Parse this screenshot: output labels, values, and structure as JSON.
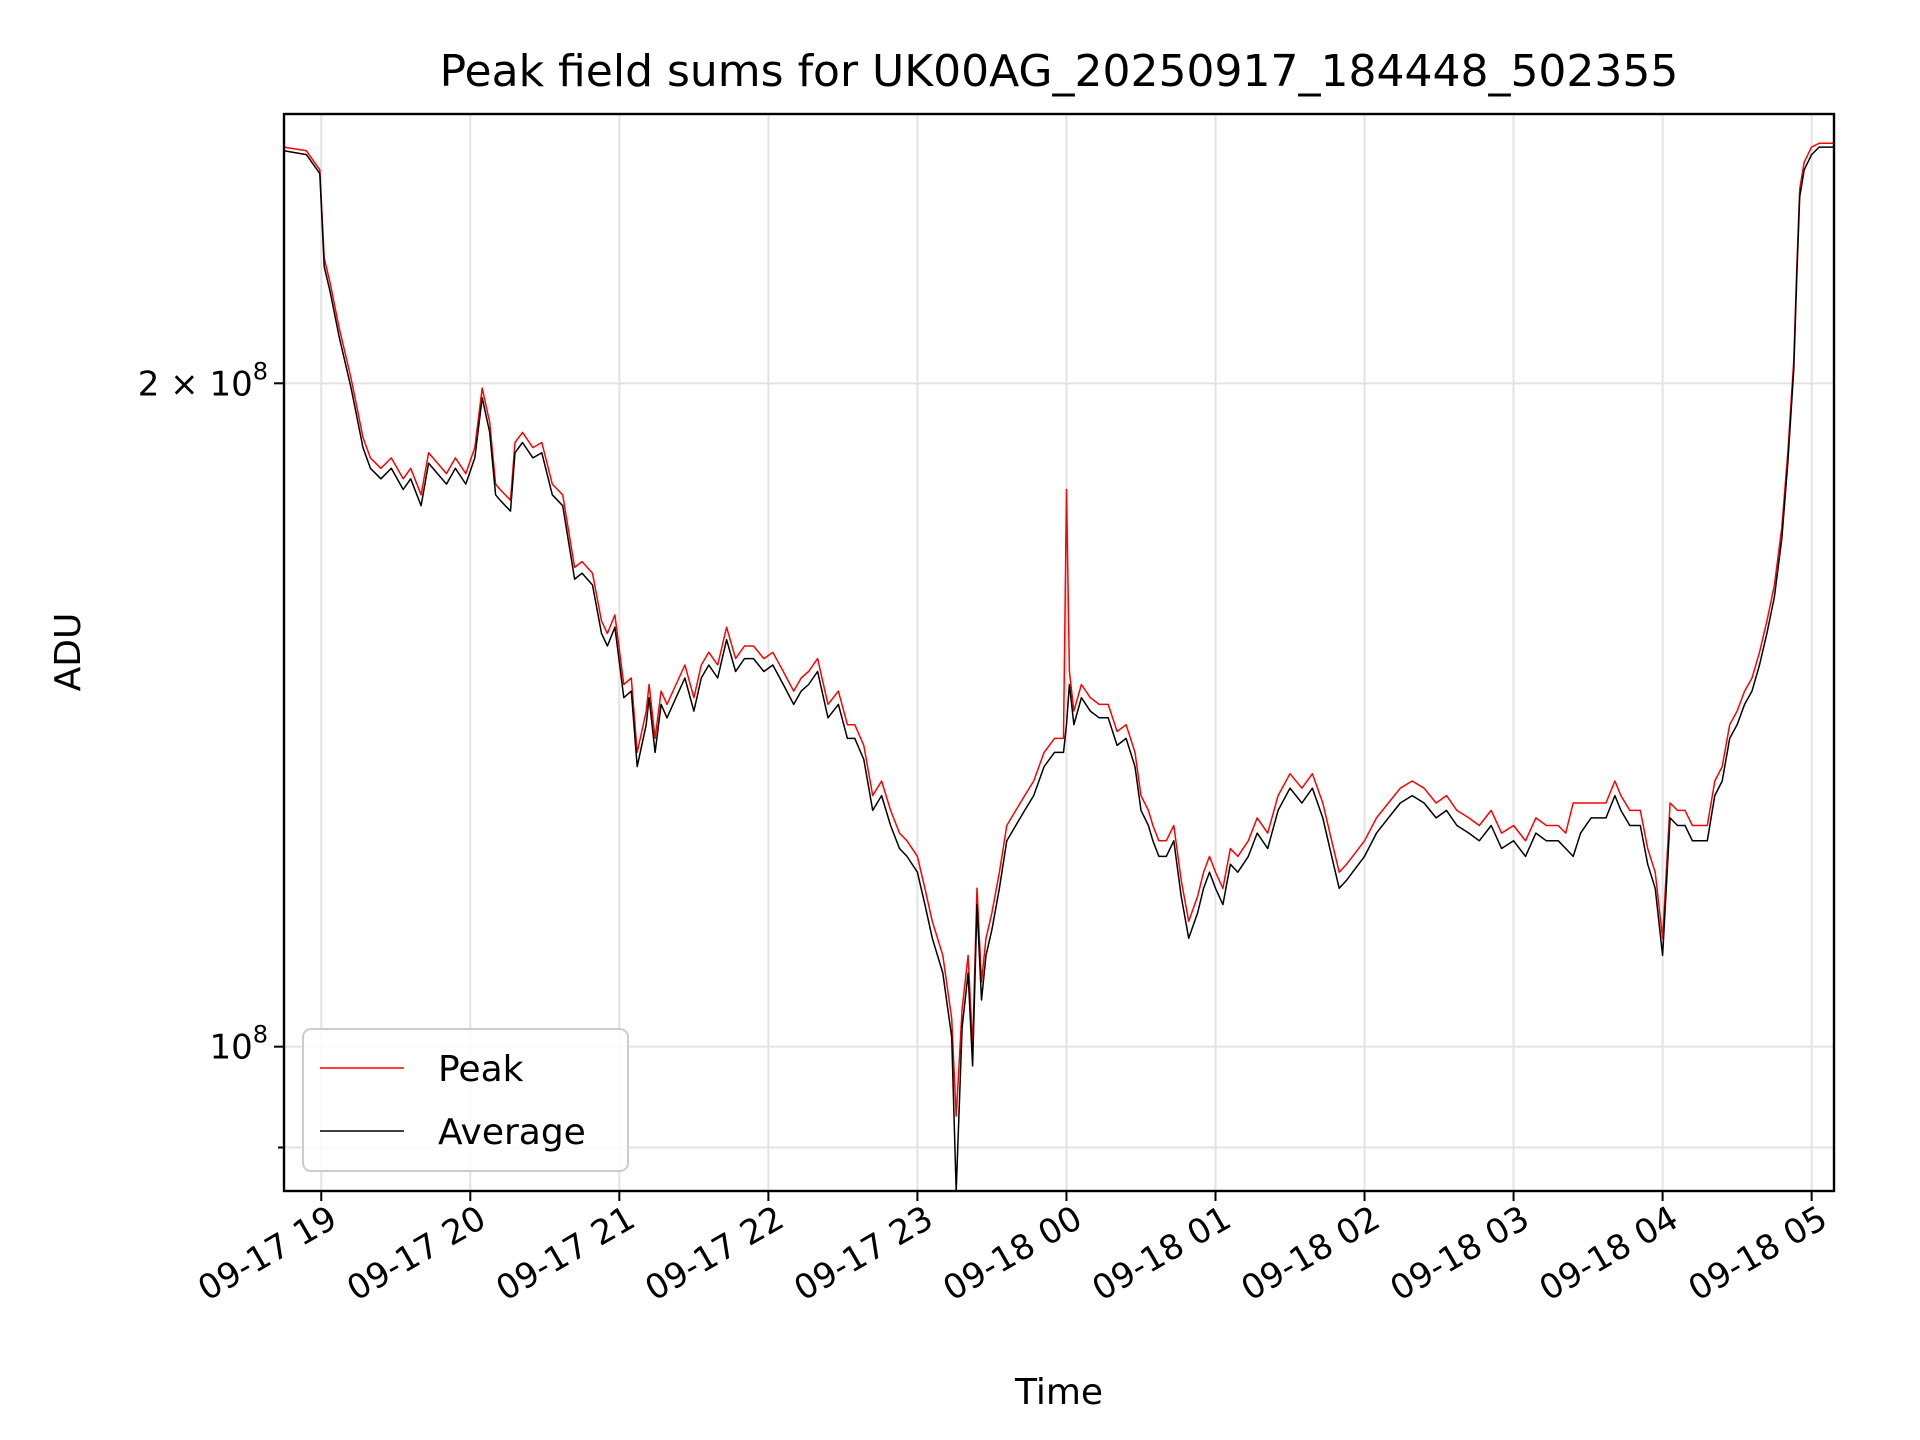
{
  "chart_data": {
    "type": "line",
    "title": "Peak field sums for UK00AG_20250917_184448_502355",
    "xlabel": "Time",
    "ylabel": "ADU",
    "yscale": "log",
    "ylim": [
      86000000,
      265000000
    ],
    "xlim": [
      18.75,
      29.15
    ],
    "grid": true,
    "legend_position": "lower-left",
    "x_ticks": [
      {
        "value": 19,
        "label": "09-17 19"
      },
      {
        "value": 20,
        "label": "09-17 20"
      },
      {
        "value": 21,
        "label": "09-17 21"
      },
      {
        "value": 22,
        "label": "09-17 22"
      },
      {
        "value": 23,
        "label": "09-17 23"
      },
      {
        "value": 24,
        "label": "09-18 00"
      },
      {
        "value": 25,
        "label": "09-18 01"
      },
      {
        "value": 26,
        "label": "09-18 02"
      },
      {
        "value": 27,
        "label": "09-18 03"
      },
      {
        "value": 28,
        "label": "09-18 04"
      },
      {
        "value": 29,
        "label": "09-18 05"
      }
    ],
    "y_ticks": [
      {
        "value": 100000000,
        "base": "10",
        "exp": "8",
        "prefix": ""
      },
      {
        "value": 200000000,
        "base": "10",
        "exp": "8",
        "prefix": "2 × "
      }
    ],
    "y_minor_ticks": [
      90000000
    ],
    "series": [
      {
        "name": "Peak",
        "color": "#ff0000",
        "x": [
          18.75,
          18.9,
          18.99,
          19.02,
          19.06,
          19.12,
          19.2,
          19.28,
          19.33,
          19.4,
          19.47,
          19.55,
          19.6,
          19.67,
          19.72,
          19.78,
          19.84,
          19.9,
          19.97,
          20.03,
          20.08,
          20.13,
          20.17,
          20.2,
          20.27,
          20.3,
          20.35,
          20.42,
          20.48,
          20.55,
          20.62,
          20.7,
          20.75,
          20.82,
          20.88,
          20.92,
          20.97,
          21.03,
          21.08,
          21.12,
          21.18,
          21.2,
          21.24,
          21.28,
          21.32,
          21.38,
          21.44,
          21.5,
          21.55,
          21.6,
          21.66,
          21.72,
          21.78,
          21.84,
          21.9,
          21.97,
          22.03,
          22.1,
          22.17,
          22.22,
          22.27,
          22.33,
          22.4,
          22.47,
          22.53,
          22.58,
          22.64,
          22.7,
          22.76,
          22.82,
          22.88,
          22.93,
          23.0,
          23.05,
          23.1,
          23.17,
          23.23,
          23.26,
          23.3,
          23.34,
          23.37,
          23.4,
          23.43,
          23.46,
          23.5,
          23.55,
          23.6,
          23.66,
          23.72,
          23.78,
          23.85,
          23.92,
          23.98,
          24.0,
          24.02,
          24.05,
          24.1,
          24.16,
          24.22,
          24.28,
          24.34,
          24.4,
          24.46,
          24.5,
          24.55,
          24.58,
          24.62,
          24.67,
          24.72,
          24.77,
          24.82,
          24.88,
          24.92,
          24.96,
          25.0,
          25.05,
          25.1,
          25.15,
          25.22,
          25.28,
          25.35,
          25.42,
          25.5,
          25.58,
          25.65,
          25.72,
          25.78,
          25.83,
          25.88,
          25.92,
          26.0,
          26.08,
          26.16,
          26.24,
          26.32,
          26.4,
          26.48,
          26.55,
          26.62,
          26.7,
          26.77,
          26.85,
          26.92,
          27.0,
          27.08,
          27.15,
          27.22,
          27.3,
          27.35,
          27.4,
          27.45,
          27.52,
          27.58,
          27.62,
          27.68,
          27.72,
          27.78,
          27.85,
          27.9,
          27.95,
          28.0,
          28.05,
          28.1,
          28.15,
          28.2,
          28.25,
          28.3,
          28.35,
          28.4,
          28.45,
          28.5,
          28.55,
          28.6,
          28.65,
          28.7,
          28.75,
          28.8,
          28.84,
          28.88,
          28.9,
          28.92,
          28.95,
          29.0,
          29.05,
          29.15
        ],
        "values": [
          256000000,
          255000000,
          250000000,
          228000000,
          222000000,
          212000000,
          201000000,
          189000000,
          185000000,
          183000000,
          185000000,
          181000000,
          183000000,
          178000000,
          186000000,
          184000000,
          182000000,
          185000000,
          182000000,
          187000000,
          199000000,
          192000000,
          180000000,
          179000000,
          177000000,
          188000000,
          190000000,
          187000000,
          188000000,
          180000000,
          178000000,
          165000000,
          166000000,
          164000000,
          156000000,
          154000000,
          157000000,
          146000000,
          147000000,
          136000000,
          142000000,
          146000000,
          138000000,
          145000000,
          143000000,
          146000000,
          149000000,
          144000000,
          149000000,
          151000000,
          149000000,
          155000000,
          150000000,
          152000000,
          152000000,
          150000000,
          151000000,
          148000000,
          145000000,
          147000000,
          148000000,
          150000000,
          143000000,
          145000000,
          140000000,
          140000000,
          137000000,
          130000000,
          132000000,
          128000000,
          125000000,
          124000000,
          122000000,
          118000000,
          114000000,
          110000000,
          103000000,
          93000000,
          104000000,
          110000000,
          100000000,
          118000000,
          107000000,
          112000000,
          115000000,
          120000000,
          126000000,
          128000000,
          130000000,
          132000000,
          136000000,
          138000000,
          138000000,
          179000000,
          148000000,
          142000000,
          146000000,
          144000000,
          143000000,
          143000000,
          139000000,
          140000000,
          136000000,
          130000000,
          128000000,
          126000000,
          124000000,
          124000000,
          126000000,
          119000000,
          114000000,
          117000000,
          120000000,
          122000000,
          120000000,
          118000000,
          123000000,
          122000000,
          124000000,
          127000000,
          125000000,
          130000000,
          133000000,
          131000000,
          133000000,
          129000000,
          124000000,
          120000000,
          121000000,
          122000000,
          124000000,
          127000000,
          129000000,
          131000000,
          132000000,
          131000000,
          129000000,
          130000000,
          128000000,
          127000000,
          126000000,
          128000000,
          125000000,
          126000000,
          124000000,
          127000000,
          126000000,
          126000000,
          125000000,
          129000000,
          129000000,
          129000000,
          129000000,
          129000000,
          132000000,
          130000000,
          128000000,
          128000000,
          123000000,
          120000000,
          112000000,
          129000000,
          128000000,
          128000000,
          126000000,
          126000000,
          126000000,
          132000000,
          134000000,
          140000000,
          142000000,
          145000000,
          147000000,
          151000000,
          156000000,
          162000000,
          172000000,
          186000000,
          205000000,
          225000000,
          245000000,
          252000000,
          256000000,
          257000000,
          257000000
        ]
      },
      {
        "name": "Average",
        "color": "#000000",
        "x": [
          18.75,
          18.9,
          18.99,
          19.02,
          19.06,
          19.12,
          19.2,
          19.28,
          19.33,
          19.4,
          19.47,
          19.55,
          19.6,
          19.67,
          19.72,
          19.78,
          19.84,
          19.9,
          19.97,
          20.03,
          20.08,
          20.13,
          20.17,
          20.2,
          20.27,
          20.3,
          20.35,
          20.42,
          20.48,
          20.55,
          20.62,
          20.7,
          20.75,
          20.82,
          20.88,
          20.92,
          20.97,
          21.03,
          21.08,
          21.12,
          21.18,
          21.2,
          21.24,
          21.28,
          21.32,
          21.38,
          21.44,
          21.5,
          21.55,
          21.6,
          21.66,
          21.72,
          21.78,
          21.84,
          21.9,
          21.97,
          22.03,
          22.1,
          22.17,
          22.22,
          22.27,
          22.33,
          22.4,
          22.47,
          22.53,
          22.58,
          22.64,
          22.7,
          22.76,
          22.82,
          22.88,
          22.93,
          23.0,
          23.05,
          23.1,
          23.17,
          23.23,
          23.26,
          23.3,
          23.34,
          23.37,
          23.4,
          23.43,
          23.46,
          23.5,
          23.55,
          23.6,
          23.66,
          23.72,
          23.78,
          23.85,
          23.92,
          23.98,
          24.0,
          24.02,
          24.05,
          24.1,
          24.16,
          24.22,
          24.28,
          24.34,
          24.4,
          24.46,
          24.5,
          24.55,
          24.58,
          24.62,
          24.67,
          24.72,
          24.77,
          24.82,
          24.88,
          24.92,
          24.96,
          25.0,
          25.05,
          25.1,
          25.15,
          25.22,
          25.28,
          25.35,
          25.42,
          25.5,
          25.58,
          25.65,
          25.72,
          25.78,
          25.83,
          25.88,
          25.92,
          26.0,
          26.08,
          26.16,
          26.24,
          26.32,
          26.4,
          26.48,
          26.55,
          26.62,
          26.7,
          26.77,
          26.85,
          26.92,
          27.0,
          27.08,
          27.15,
          27.22,
          27.3,
          27.35,
          27.4,
          27.45,
          27.52,
          27.58,
          27.62,
          27.68,
          27.72,
          27.78,
          27.85,
          27.9,
          27.95,
          28.0,
          28.05,
          28.1,
          28.15,
          28.2,
          28.25,
          28.3,
          28.35,
          28.4,
          28.45,
          28.5,
          28.55,
          28.6,
          28.65,
          28.7,
          28.75,
          28.8,
          28.84,
          28.88,
          28.9,
          28.92,
          28.95,
          29.0,
          29.05,
          29.15
        ],
        "values": [
          255000000,
          254000000,
          249000000,
          226000000,
          220000000,
          210000000,
          199000000,
          187000000,
          183000000,
          181000000,
          183000000,
          179000000,
          181000000,
          176000000,
          184000000,
          182000000,
          180000000,
          183000000,
          180000000,
          185000000,
          197000000,
          190000000,
          178000000,
          177000000,
          175000000,
          186000000,
          188000000,
          185000000,
          186000000,
          178000000,
          176000000,
          163000000,
          164000000,
          162000000,
          154000000,
          152000000,
          155000000,
          144000000,
          145000000,
          134000000,
          140000000,
          144000000,
          136000000,
          143000000,
          141000000,
          144000000,
          147000000,
          142000000,
          147000000,
          149000000,
          147000000,
          153000000,
          148000000,
          150000000,
          150000000,
          148000000,
          149000000,
          146000000,
          143000000,
          145000000,
          146000000,
          148000000,
          141000000,
          143000000,
          138000000,
          138000000,
          135000000,
          128000000,
          130000000,
          126000000,
          123000000,
          122000000,
          120000000,
          116000000,
          112000000,
          108000000,
          101000000,
          86000000,
          102000000,
          108000000,
          98000000,
          116000000,
          105000000,
          110000000,
          113000000,
          118000000,
          124000000,
          126000000,
          128000000,
          130000000,
          134000000,
          136000000,
          136000000,
          140000000,
          146000000,
          140000000,
          144000000,
          142000000,
          141000000,
          141000000,
          137000000,
          138000000,
          134000000,
          128000000,
          126000000,
          124000000,
          122000000,
          122000000,
          124000000,
          117000000,
          112000000,
          115000000,
          118000000,
          120000000,
          118000000,
          116000000,
          121000000,
          120000000,
          122000000,
          125000000,
          123000000,
          128000000,
          131000000,
          129000000,
          131000000,
          127000000,
          122000000,
          118000000,
          119000000,
          120000000,
          122000000,
          125000000,
          127000000,
          129000000,
          130000000,
          129000000,
          127000000,
          128000000,
          126000000,
          125000000,
          124000000,
          126000000,
          123000000,
          124000000,
          122000000,
          125000000,
          124000000,
          124000000,
          123000000,
          122000000,
          125000000,
          127000000,
          127000000,
          127000000,
          130000000,
          128000000,
          126000000,
          126000000,
          121000000,
          118000000,
          110000000,
          127000000,
          126000000,
          126000000,
          124000000,
          124000000,
          124000000,
          130000000,
          132000000,
          138000000,
          140000000,
          143000000,
          145000000,
          149000000,
          154000000,
          160000000,
          170000000,
          184000000,
          203000000,
          223000000,
          243000000,
          250000000,
          254000000,
          256000000,
          256000000
        ]
      }
    ]
  }
}
